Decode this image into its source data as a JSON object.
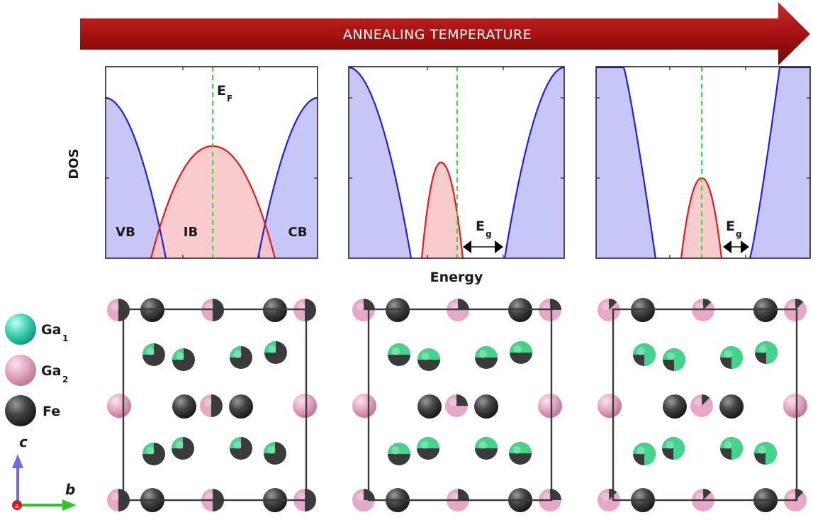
{
  "arrow": {
    "label": "ANNEALING TEMPERATURE"
  },
  "axes": {
    "ylabel": "DOS",
    "xlabel": "Energy"
  },
  "bands": {
    "valence": "VB",
    "impurity": "IB",
    "conduction": "CB"
  },
  "fermi": {
    "main": "E",
    "sub": "F"
  },
  "gap": {
    "main": "E",
    "sub": "g"
  },
  "legend": {
    "ga1": {
      "main": "Ga",
      "sub": "1",
      "color": "#3fd6b6"
    },
    "ga2": {
      "main": "Ga",
      "sub": "2",
      "color": "#e6a6c2"
    },
    "fe": {
      "main": "Fe",
      "color": "#3a3a3a"
    }
  },
  "compass": {
    "up": "c",
    "right": "b",
    "origin": "a"
  },
  "colors": {
    "arrow": "#a81414",
    "vb_cb_line": "#1f1fdd",
    "vb_cb_fill": "#c7c7f7",
    "ib_line": "#e01b1b",
    "ib_fill": "#f7c3c3",
    "fermi_line": "#3ad63a",
    "ga1_atom": "#43d38a",
    "ga2_atom": "#e6a8c6",
    "fe_atom": "#3b3b3b"
  }
}
